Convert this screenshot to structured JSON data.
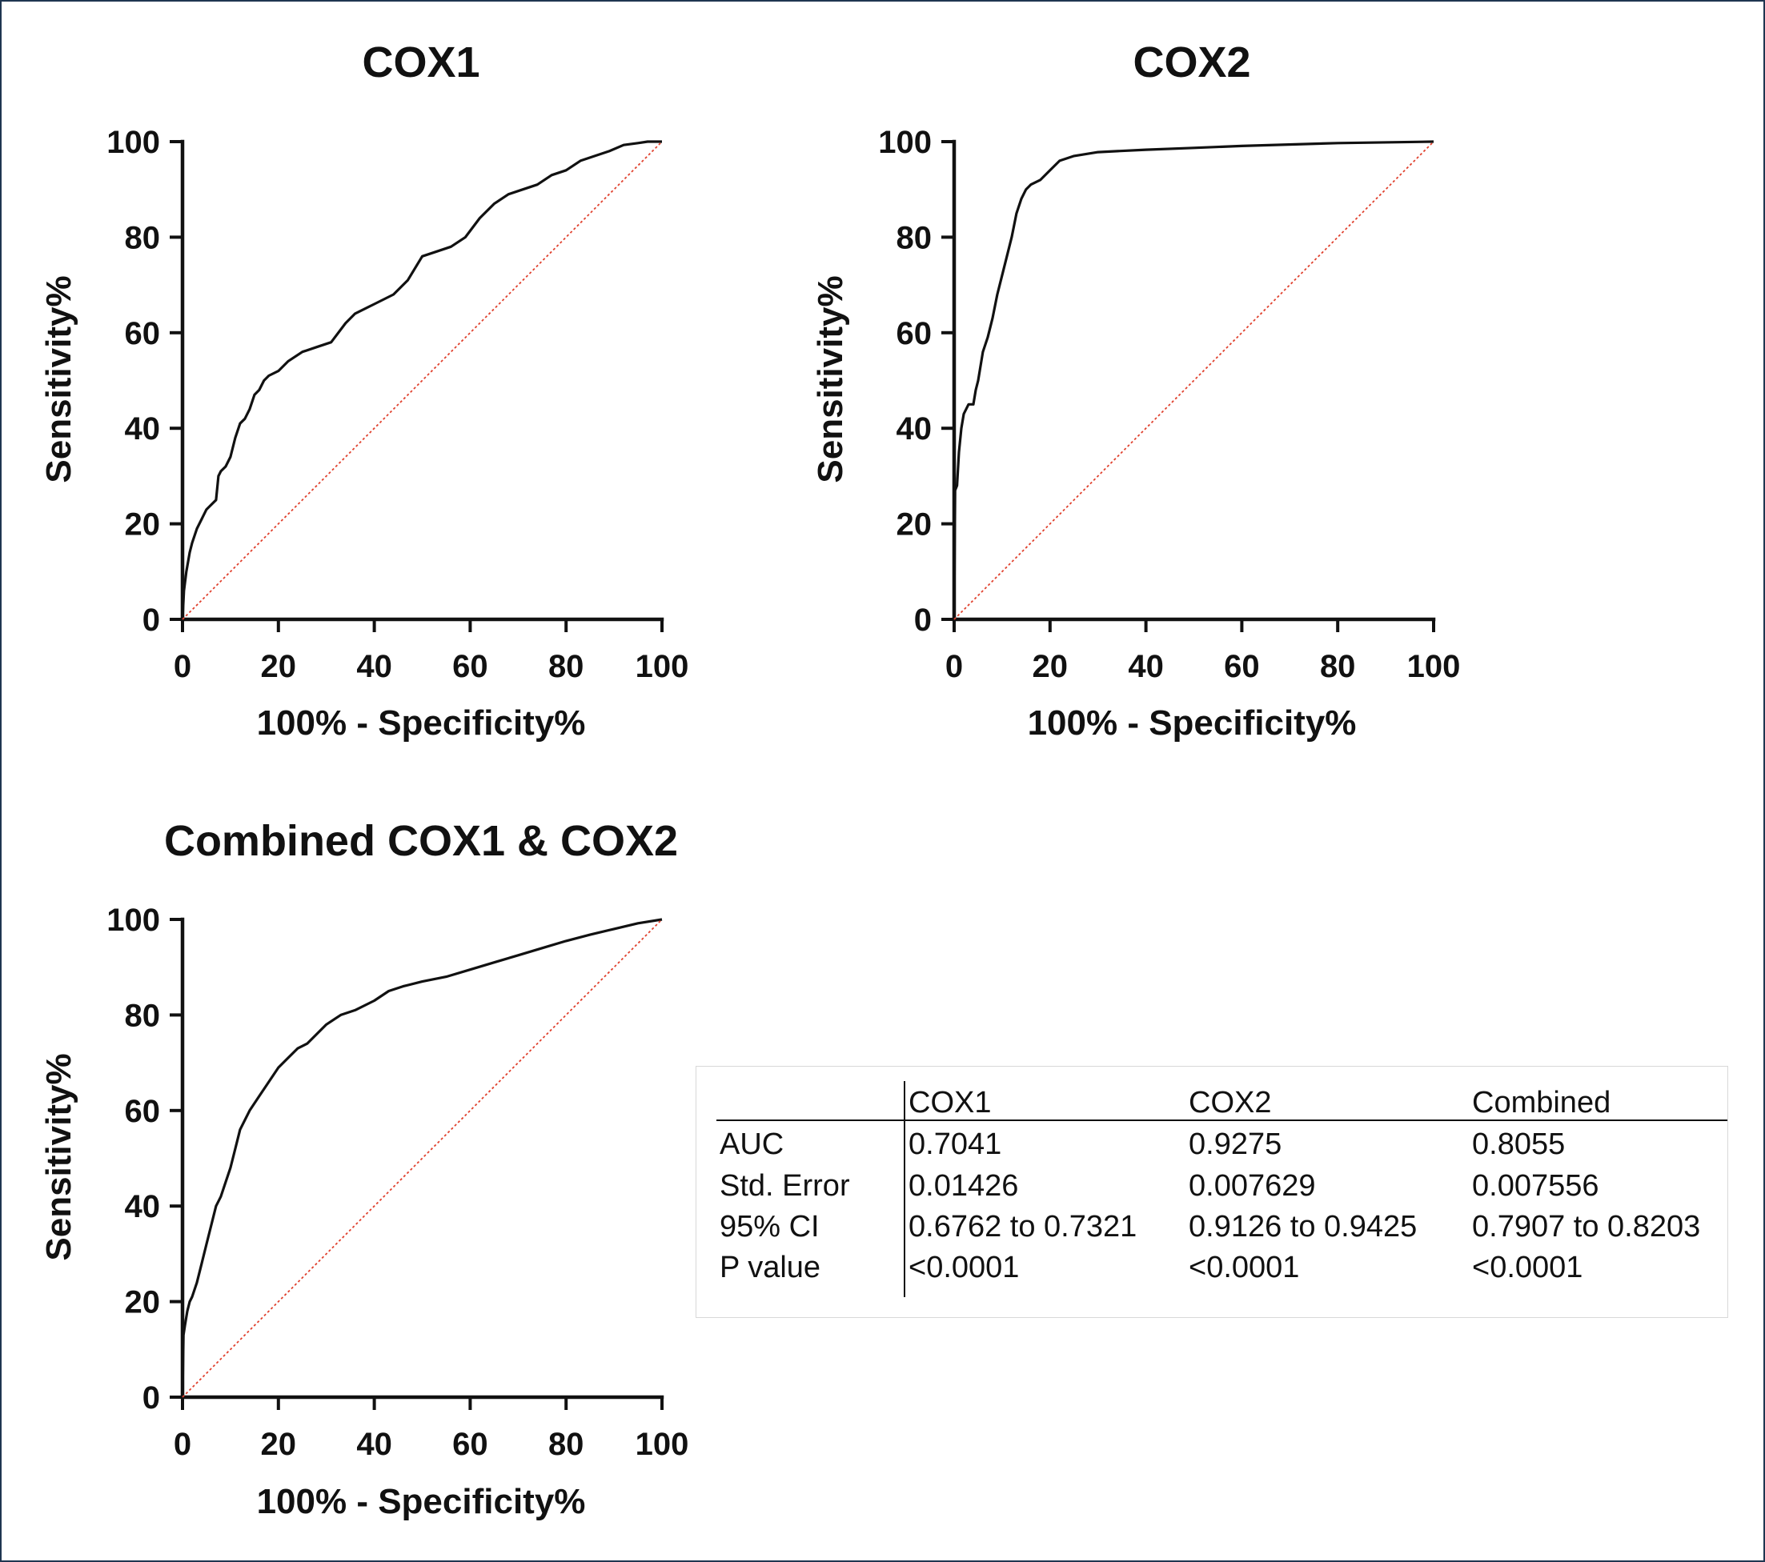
{
  "chart_data": [
    {
      "type": "line",
      "title": "COX1",
      "xlabel": "100% - Specificity%",
      "ylabel": "Sensitivity%",
      "xlim": [
        0,
        100
      ],
      "ylim": [
        0,
        100
      ],
      "xticks": [
        "0",
        "20",
        "40",
        "60",
        "80",
        "100"
      ],
      "yticks": [
        "0",
        "20",
        "40",
        "60",
        "80",
        "100"
      ],
      "series": [
        {
          "name": "COX1 ROC",
          "x": [
            0,
            0.3,
            0.8,
            1.5,
            2,
            3,
            4,
            5,
            6,
            7,
            7.5,
            8,
            9,
            10,
            11,
            12,
            13,
            14,
            15,
            16,
            17,
            18,
            20,
            22,
            25,
            28,
            31,
            34,
            36,
            40,
            44,
            47,
            50,
            53,
            56,
            59,
            62,
            65,
            68,
            71,
            74,
            77,
            80,
            83,
            86,
            89,
            92,
            95,
            97,
            100
          ],
          "y": [
            0,
            6,
            10,
            14,
            16,
            19,
            21,
            23,
            24,
            25,
            30,
            31,
            32,
            34,
            38,
            41,
            42,
            44,
            47,
            48,
            50,
            51,
            52,
            54,
            56,
            57,
            58,
            62,
            64,
            66,
            68,
            71,
            76,
            77,
            78,
            80,
            84,
            87,
            89,
            90,
            91,
            93,
            94,
            96,
            97,
            98,
            99.3,
            99.7,
            100,
            100
          ]
        },
        {
          "name": "Reference",
          "x": [
            0,
            100
          ],
          "y": [
            0,
            100
          ]
        }
      ]
    },
    {
      "type": "line",
      "title": "COX2",
      "xlabel": "100% - Specificity%",
      "ylabel": "Sensitivity%",
      "xlim": [
        0,
        100
      ],
      "ylim": [
        0,
        100
      ],
      "xticks": [
        "0",
        "20",
        "40",
        "60",
        "80",
        "100"
      ],
      "yticks": [
        "0",
        "20",
        "40",
        "60",
        "80",
        "100"
      ],
      "series": [
        {
          "name": "COX2 ROC",
          "x": [
            0,
            0.2,
            0.6,
            1,
            1.5,
            2,
            2.5,
            3,
            3.5,
            4,
            4.5,
            5,
            6,
            7,
            8,
            9,
            10,
            11,
            12,
            13,
            14,
            15,
            16,
            18,
            20,
            22,
            25,
            30,
            40,
            50,
            60,
            80,
            100
          ],
          "y": [
            0,
            27,
            28,
            35,
            40,
            43,
            44,
            45,
            45,
            45,
            48,
            50,
            56,
            59,
            63,
            68,
            72,
            76,
            80,
            85,
            88,
            90,
            91,
            92,
            94,
            96,
            97,
            97.8,
            98.3,
            98.7,
            99.1,
            99.7,
            100
          ]
        },
        {
          "name": "Reference",
          "x": [
            0,
            100
          ],
          "y": [
            0,
            100
          ]
        }
      ]
    },
    {
      "type": "line",
      "title": "Combined COX1 & COX2",
      "xlabel": "100% - Specificity%",
      "ylabel": "Sensitivity%",
      "xlim": [
        0,
        100
      ],
      "ylim": [
        0,
        100
      ],
      "xticks": [
        "0",
        "20",
        "40",
        "60",
        "80",
        "100"
      ],
      "yticks": [
        "0",
        "20",
        "40",
        "60",
        "80",
        "100"
      ],
      "series": [
        {
          "name": "Combined ROC",
          "x": [
            0,
            0.2,
            0.5,
            1,
            1.5,
            2,
            3,
            4,
            5,
            6,
            7,
            8,
            9,
            10,
            11,
            12,
            14,
            16,
            18,
            20,
            22,
            24,
            26,
            28,
            30,
            33,
            36,
            40,
            43,
            46,
            50,
            55,
            60,
            65,
            70,
            75,
            80,
            85,
            90,
            95,
            100
          ],
          "y": [
            0,
            13,
            15,
            18,
            20,
            21,
            24,
            28,
            32,
            36,
            40,
            42,
            45,
            48,
            52,
            56,
            60,
            63,
            66,
            69,
            71,
            73,
            74,
            76,
            78,
            80,
            81,
            83,
            85,
            86,
            87,
            88,
            89.5,
            91,
            92.5,
            94,
            95.5,
            96.8,
            98,
            99.2,
            100
          ]
        },
        {
          "name": "Reference",
          "x": [
            0,
            100
          ],
          "y": [
            0,
            100
          ]
        }
      ]
    }
  ],
  "stats_table": {
    "headers": [
      "",
      "COX1",
      "COX2",
      "Combined"
    ],
    "rows": [
      {
        "label": "AUC",
        "values": [
          "0.7041",
          "0.9275",
          "0.8055"
        ]
      },
      {
        "label": "Std. Error",
        "values": [
          "0.01426",
          "0.007629",
          "0.007556"
        ]
      },
      {
        "label": "95% CI",
        "values": [
          "0.6762 to 0.7321",
          "0.9126 to 0.9425",
          "0.7907 to 0.8203"
        ]
      },
      {
        "label": "P value",
        "values": [
          "<0.0001",
          "<0.0001",
          "<0.0001"
        ]
      }
    ]
  },
  "colors": {
    "curve": "#111111",
    "reference": "#e0412e",
    "frame": "#1f3550"
  }
}
